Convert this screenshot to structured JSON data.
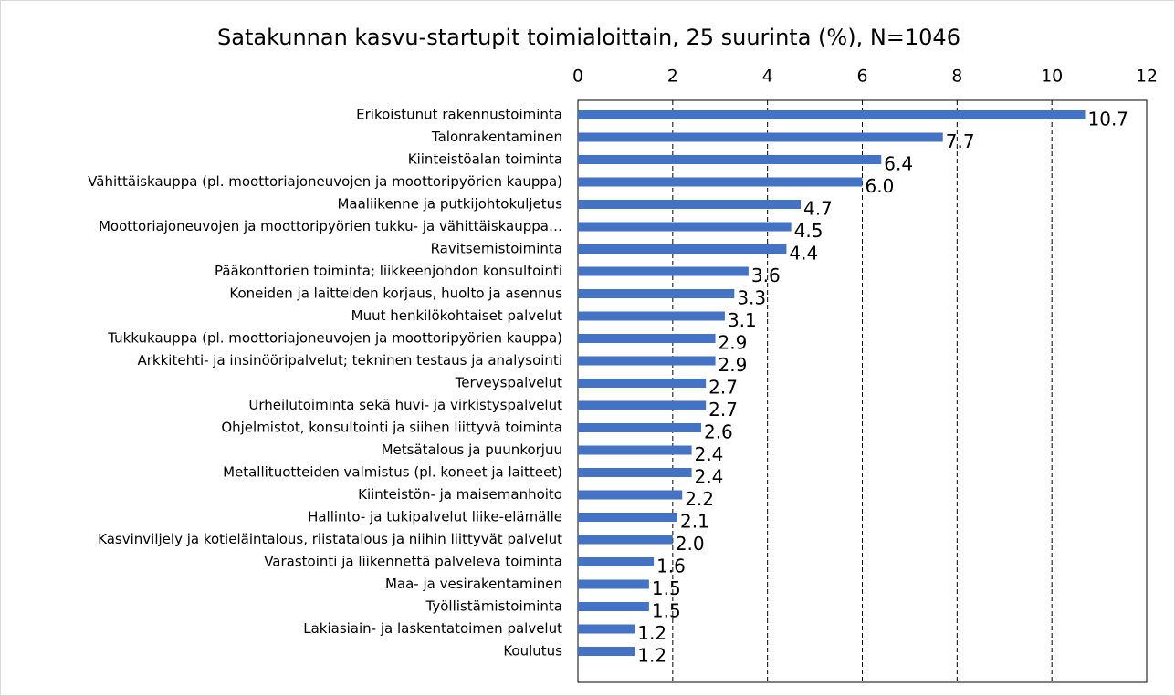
{
  "chart_data": {
    "type": "bar",
    "orientation": "horizontal",
    "title": "Satakunnan kasvu-startupit toimialoittain, 25 suurinta (%), N=1046",
    "categories": [
      "Erikoistunut rakennustoiminta",
      "Talonrakentaminen",
      "Kiinteistöalan toiminta",
      "Vähittäiskauppa (pl. moottoriajoneuvojen ja moottoripyörien kauppa)",
      "Maaliikenne ja putkijohtokuljetus",
      "Moottoriajoneuvojen ja moottoripyörien tukku- ja vähittäiskauppa…",
      "Ravitsemistoiminta",
      "Pääkonttorien toiminta; liikkeenjohdon konsultointi",
      "Koneiden ja laitteiden korjaus, huolto ja asennus",
      "Muut henkilökohtaiset palvelut",
      "Tukkukauppa (pl. moottoriajoneuvojen ja moottoripyörien kauppa)",
      "Arkkitehti- ja insinööripalvelut; tekninen testaus ja analysointi",
      "Terveyspalvelut",
      "Urheilutoiminta sekä huvi- ja virkistyspalvelut",
      "Ohjelmistot, konsultointi ja siihen liittyvä toiminta",
      "Metsätalous ja puunkorjuu",
      "Metallituotteiden valmistus (pl. koneet ja laitteet)",
      "Kiinteistön- ja maisemanhoito",
      "Hallinto- ja tukipalvelut liike-elämälle",
      "Kasvinviljely ja kotieläintalous, riistatalous ja niihin liittyvät palvelut",
      "Varastointi ja liikennettä palveleva toiminta",
      "Maa- ja vesirakentaminen",
      "Työllistämistoiminta",
      "Lakiasiain- ja laskentatoimen palvelut",
      "Koulutus"
    ],
    "values": [
      10.7,
      7.7,
      6.4,
      6.0,
      4.7,
      4.5,
      4.4,
      3.6,
      3.3,
      3.1,
      2.9,
      2.9,
      2.7,
      2.7,
      2.6,
      2.4,
      2.4,
      2.2,
      2.1,
      2.0,
      1.6,
      1.5,
      1.5,
      1.2,
      1.2
    ],
    "value_labels": [
      "10.7",
      "7.7",
      "6.4",
      "6.0",
      "4.7",
      "4.5",
      "4.4",
      "3.6",
      "3.3",
      "3.1",
      "2.9",
      "2.9",
      "2.7",
      "2.7",
      "2.6",
      "2.4",
      "2.4",
      "2.2",
      "2.1",
      "2.0",
      "1.6",
      "1.5",
      "1.5",
      "1.2",
      "1.2"
    ],
    "color": "#4472c4",
    "xlim": [
      0,
      12
    ],
    "xticks": [
      0,
      2,
      4,
      6,
      8,
      10,
      12
    ],
    "grid": true
  }
}
